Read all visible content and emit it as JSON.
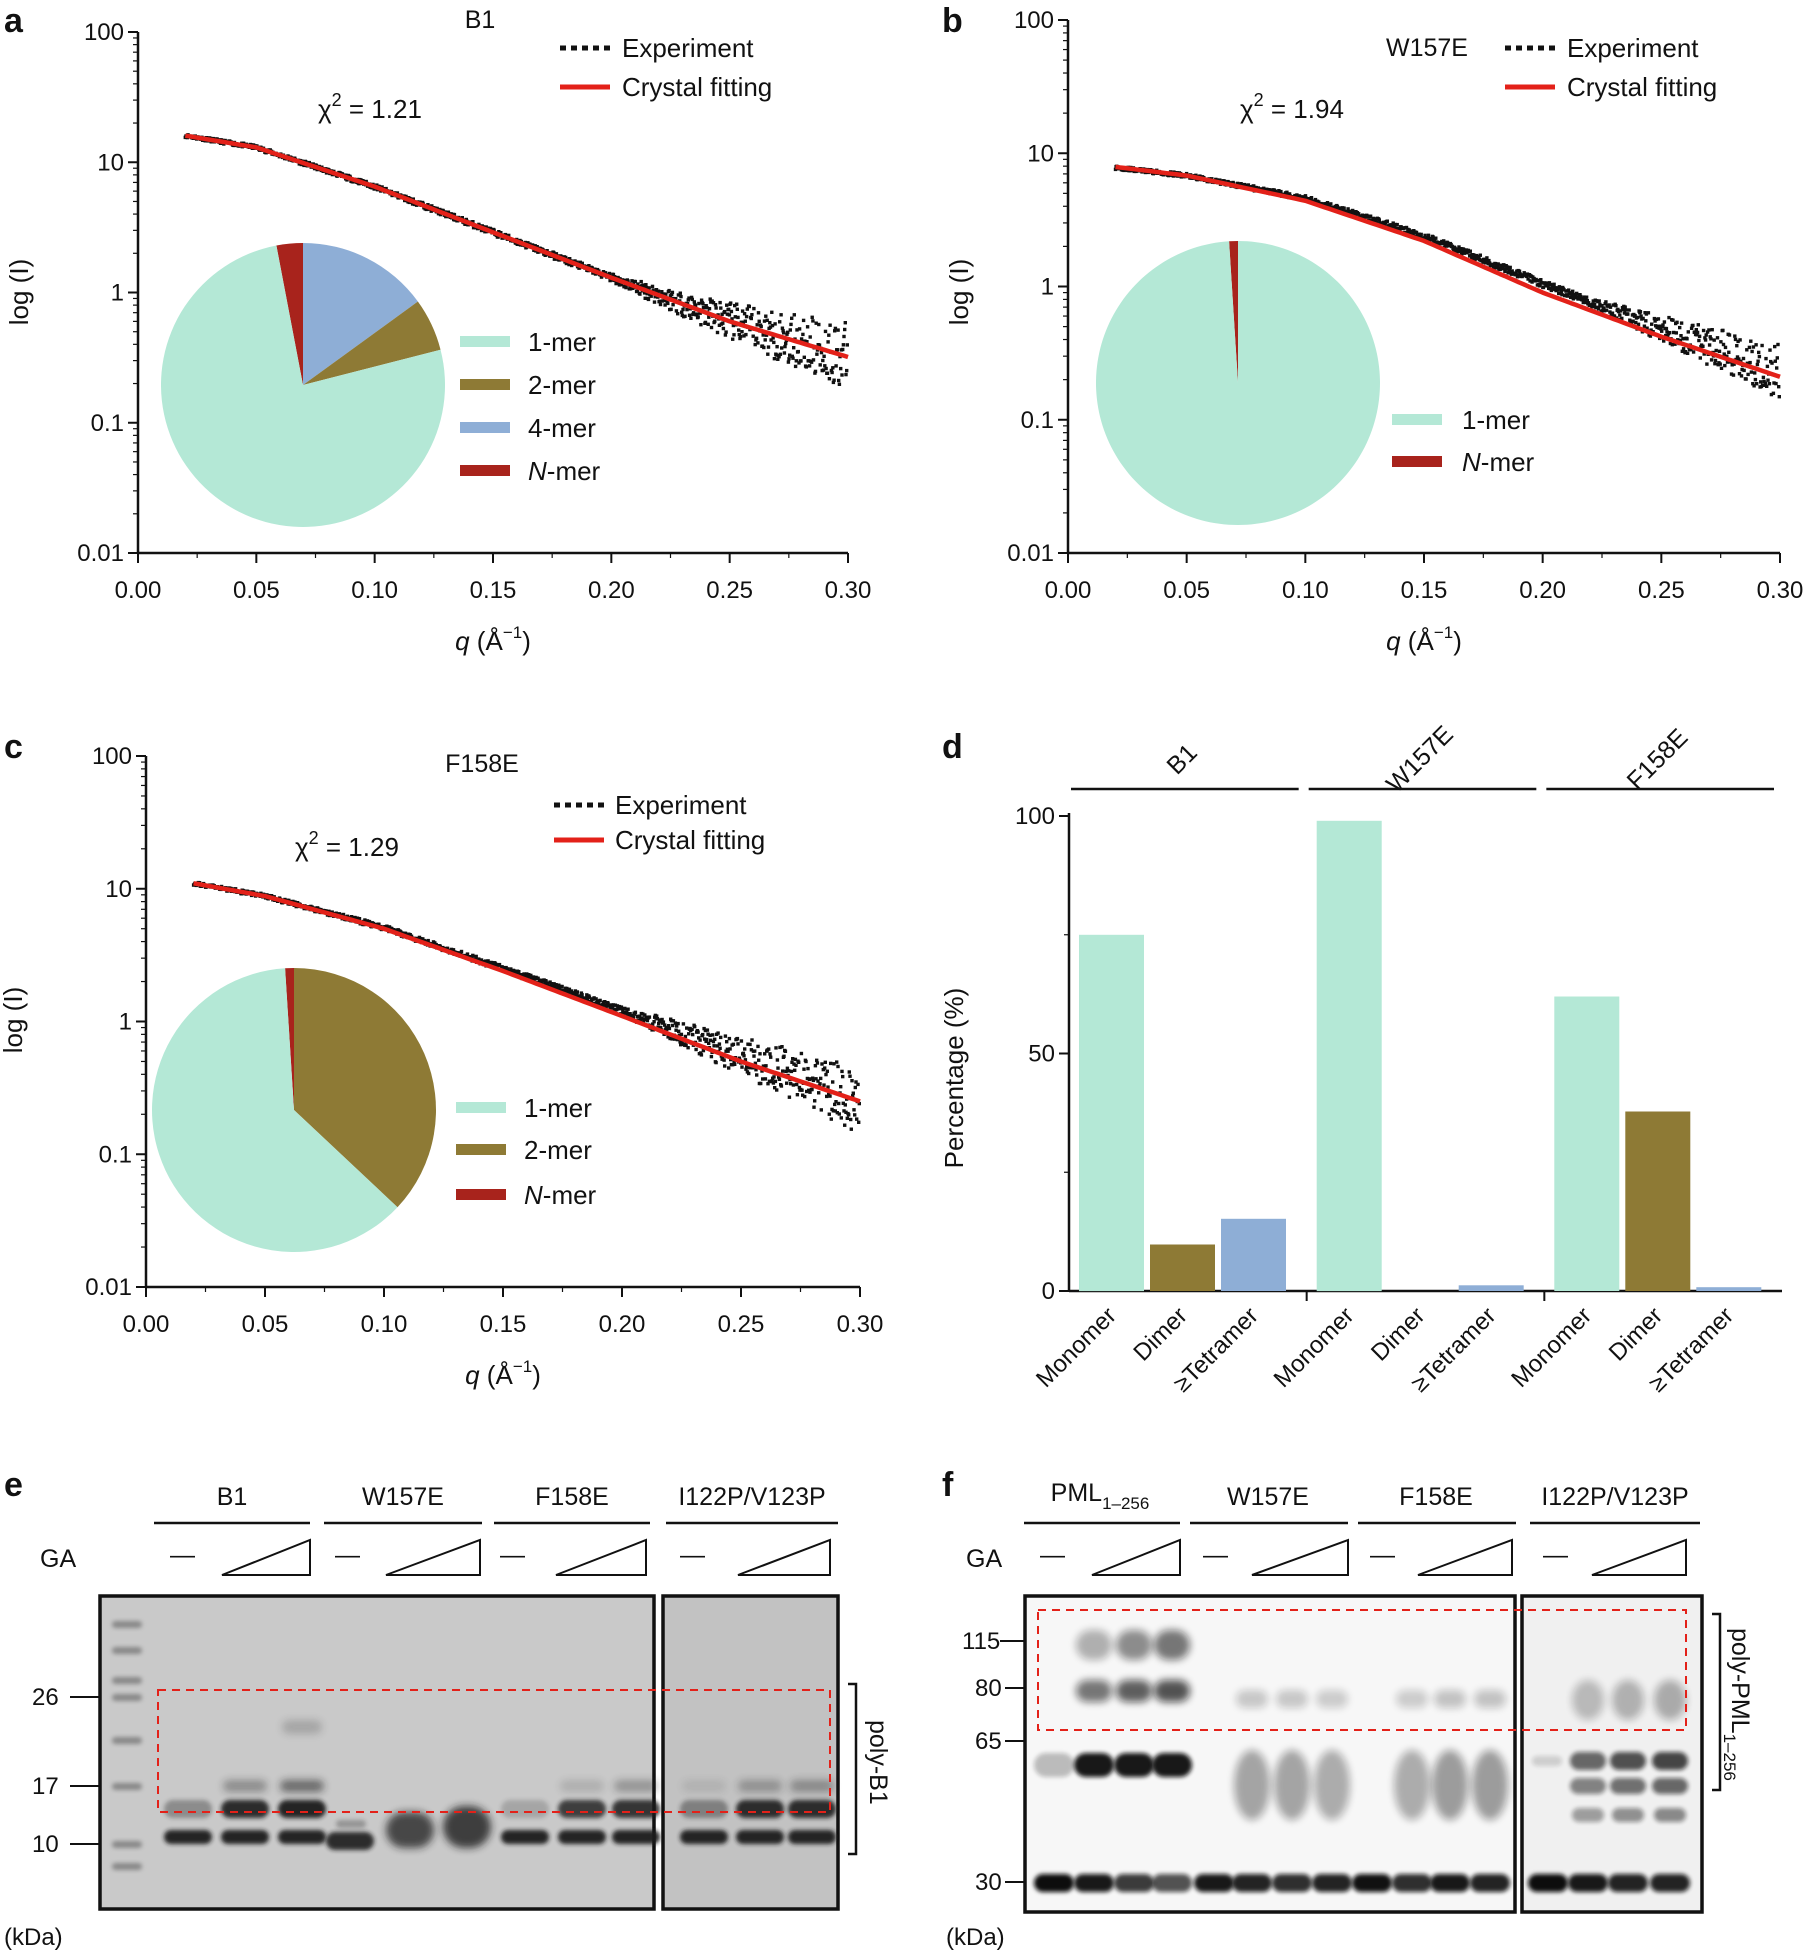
{
  "colors": {
    "experiment": "#111111",
    "fit": "#e32119",
    "monomer": "#b4e8d6",
    "dimer": "#8e7a35",
    "tetramer": "#8eaed6",
    "nmer": "#a8231c",
    "dashed_box": "#e32119",
    "axis": "#111111"
  },
  "chart_data": [
    {
      "id": "a",
      "type": "scatter",
      "panel_letter": "a",
      "title": "B1",
      "xlabel_italic": "q",
      "xlabel_rest": " (Å",
      "xlabel_sup": "−1",
      "xlabel_close": ")",
      "ylabel": "log (I)",
      "xlim": [
        0.0,
        0.3
      ],
      "ylim": [
        0.01,
        100
      ],
      "yscale": "log",
      "x_ticks": [
        "0.00",
        "0.05",
        "0.10",
        "0.15",
        "0.20",
        "0.25",
        "0.30"
      ],
      "y_ticks": [
        "0.01",
        "0.1",
        "1",
        "10",
        "100"
      ],
      "chi_label": "χ",
      "chi_sup": "2",
      "chi_value": " = 1.21",
      "legend": [
        "Experiment",
        "Crystal fitting"
      ],
      "series": [
        {
          "name": "Experiment",
          "kind": "points",
          "model": {
            "q": [
              0.02,
              0.05,
              0.1,
              0.15,
              0.2,
              0.25,
              0.3
            ],
            "I": [
              16,
              13,
              6.5,
              2.9,
              1.3,
              0.6,
              0.32
            ]
          },
          "noise_onset": 0.2
        },
        {
          "name": "Crystal fitting",
          "kind": "line",
          "q": [
            0.02,
            0.05,
            0.1,
            0.15,
            0.2,
            0.25,
            0.3
          ],
          "I": [
            16,
            13,
            6.5,
            2.9,
            1.3,
            0.6,
            0.32
          ]
        }
      ],
      "inset_pie": {
        "type": "pie",
        "slices": [
          {
            "label": "1-mer",
            "value": 76
          },
          {
            "label": "2-mer",
            "value": 6
          },
          {
            "label": "4-mer",
            "value": 15
          },
          {
            "label": "N-mer",
            "value": 3
          }
        ],
        "legend": [
          {
            "label": "1-mer",
            "italic": false
          },
          {
            "label": "2-mer",
            "italic": false
          },
          {
            "label": "4-mer",
            "italic": false
          },
          {
            "label": "N",
            "italic": true,
            "suffix": "-mer"
          }
        ]
      }
    },
    {
      "id": "b",
      "type": "scatter",
      "panel_letter": "b",
      "title": "W157E",
      "xlabel_italic": "q",
      "xlabel_rest": " (Å",
      "xlabel_sup": "−1",
      "xlabel_close": ")",
      "ylabel": "log (I)",
      "xlim": [
        0.0,
        0.3
      ],
      "ylim": [
        0.01,
        100
      ],
      "yscale": "log",
      "x_ticks": [
        "0.00",
        "0.05",
        "0.10",
        "0.15",
        "0.20",
        "0.25",
        "0.30"
      ],
      "y_ticks": [
        "0.01",
        "0.1",
        "1",
        "10",
        "100"
      ],
      "chi_label": "χ",
      "chi_sup": "2",
      "chi_value": " = 1.94",
      "legend": [
        "Experiment",
        "Crystal fitting"
      ],
      "series": [
        {
          "name": "Experiment",
          "kind": "points",
          "model": {
            "q": [
              0.02,
              0.05,
              0.1,
              0.15,
              0.2,
              0.25,
              0.3
            ],
            "I": [
              7.8,
              6.8,
              4.6,
              2.4,
              1.05,
              0.48,
              0.23
            ]
          },
          "noise_onset": 0.22
        },
        {
          "name": "Crystal fitting",
          "kind": "line",
          "q": [
            0.02,
            0.05,
            0.1,
            0.15,
            0.2,
            0.25,
            0.3
          ],
          "I": [
            7.9,
            6.8,
            4.4,
            2.2,
            0.9,
            0.42,
            0.21
          ]
        }
      ],
      "inset_pie": {
        "type": "pie",
        "slices": [
          {
            "label": "1-mer",
            "value": 99
          },
          {
            "label": "N-mer",
            "value": 1
          }
        ],
        "legend": [
          {
            "label": "1-mer",
            "italic": false
          },
          {
            "label": "N",
            "italic": true,
            "suffix": "-mer"
          }
        ]
      }
    },
    {
      "id": "c",
      "type": "scatter",
      "panel_letter": "c",
      "title": "F158E",
      "xlabel_italic": "q",
      "xlabel_rest": " (Å",
      "xlabel_sup": "−1",
      "xlabel_close": ")",
      "ylabel": "log (I)",
      "xlim": [
        0.0,
        0.3
      ],
      "ylim": [
        0.01,
        100
      ],
      "yscale": "log",
      "x_ticks": [
        "0.00",
        "0.05",
        "0.10",
        "0.15",
        "0.20",
        "0.25",
        "0.30"
      ],
      "y_ticks": [
        "0.01",
        "0.1",
        "1",
        "10",
        "100"
      ],
      "chi_label": "χ",
      "chi_sup": "2",
      "chi_value": " = 1.29",
      "legend": [
        "Experiment",
        "Crystal fitting"
      ],
      "series": [
        {
          "name": "Experiment",
          "kind": "points",
          "model": {
            "q": [
              0.02,
              0.05,
              0.1,
              0.15,
              0.2,
              0.25,
              0.3
            ],
            "I": [
              11,
              8.8,
              5.1,
              2.5,
              1.2,
              0.55,
              0.26
            ]
          },
          "noise_onset": 0.2
        },
        {
          "name": "Crystal fitting",
          "kind": "line",
          "q": [
            0.02,
            0.05,
            0.1,
            0.15,
            0.2,
            0.25,
            0.3
          ],
          "I": [
            11,
            8.8,
            5.0,
            2.4,
            1.1,
            0.5,
            0.25
          ]
        }
      ],
      "inset_pie": {
        "type": "pie",
        "slices": [
          {
            "label": "1-mer",
            "value": 62
          },
          {
            "label": "2-mer",
            "value": 37
          },
          {
            "label": "N-mer",
            "value": 1
          }
        ],
        "legend": [
          {
            "label": "1-mer",
            "italic": false
          },
          {
            "label": "2-mer",
            "italic": false
          },
          {
            "label": "N",
            "italic": true,
            "suffix": "-mer"
          }
        ]
      }
    },
    {
      "id": "d",
      "type": "bar",
      "panel_letter": "d",
      "ylabel": "Percentage (%)",
      "ylim": [
        0,
        100
      ],
      "y_ticks": [
        "0",
        "50",
        "100"
      ],
      "groups": [
        "B1",
        "W157E",
        "F158E"
      ],
      "categories": [
        "Monomer",
        "Dimer",
        "≥Tetramer"
      ],
      "series": [
        {
          "name": "B1",
          "values": [
            75,
            9.8,
            15.2
          ]
        },
        {
          "name": "W157E",
          "values": [
            99,
            0,
            1.2
          ]
        },
        {
          "name": "F158E",
          "values": [
            62,
            37.8,
            0.8
          ]
        }
      ]
    }
  ],
  "gel_e": {
    "panel_letter": "e",
    "groups": [
      "B1",
      "W157E",
      "F158E",
      "I122P/V123P"
    ],
    "ga_label": "GA",
    "dash": "—",
    "markers": [
      "26",
      "17",
      "10"
    ],
    "unit": "(kDa)",
    "bracket_label": "poly-B1"
  },
  "gel_f": {
    "panel_letter": "f",
    "groups": [
      "PML",
      "W157E",
      "F158E",
      "I122P/V123P"
    ],
    "group0_sub": "1–256",
    "ga_label": "GA",
    "dash": "—",
    "markers": [
      "115",
      "80",
      "65",
      "30"
    ],
    "unit": "(kDa)",
    "bracket_label": "poly-PML",
    "bracket_sub": "1–256"
  }
}
